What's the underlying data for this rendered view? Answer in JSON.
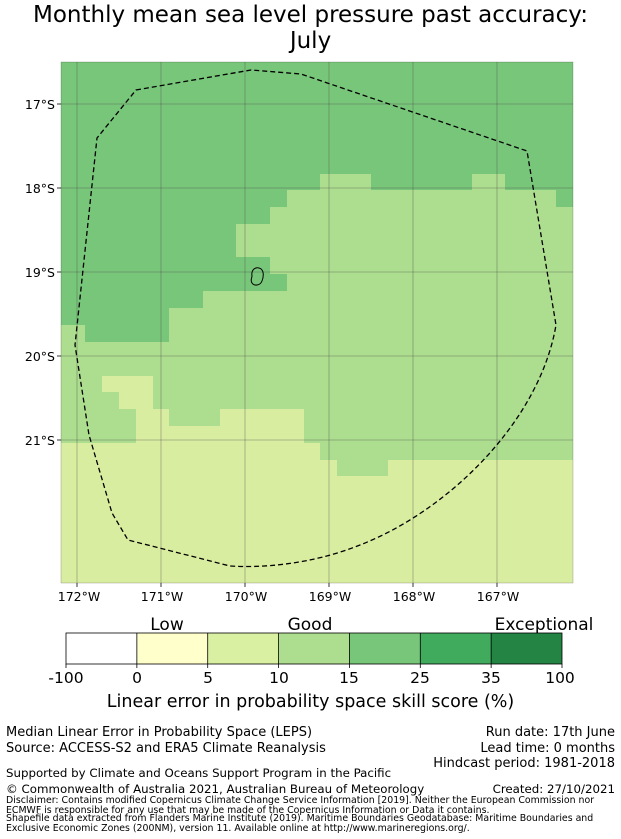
{
  "title": "Monthly mean sea level pressure past accuracy:",
  "subtitle": "July",
  "map": {
    "lat_labels": [
      "17°S",
      "18°S",
      "19°S",
      "20°S",
      "21°S"
    ],
    "lon_labels": [
      "172°W",
      "171°W",
      "170°W",
      "169°W",
      "168°W",
      "167°W"
    ],
    "colors": {
      "5-10": "#d9eda0",
      "10-15": "#addd8e",
      "15-25": "#78c679"
    }
  },
  "colorbar": {
    "categories": [
      "Low",
      "Good",
      "Exceptional"
    ],
    "ticks": [
      "-100",
      "0",
      "5",
      "10",
      "15",
      "25",
      "35",
      "100"
    ],
    "colors": [
      "#ffffff",
      "#ffffcc",
      "#d9f0a3",
      "#addd8e",
      "#78c679",
      "#41ab5d",
      "#238443"
    ],
    "label": "Linear error in probability space skill score (%)"
  },
  "footer": {
    "method": "Median Linear Error in Probability Space (LEPS)",
    "source": "Source: ACCESS-S2 and ERA5 Climate Reanalysis",
    "run_date": "Run date: 17th June",
    "lead_time": "Lead time: 0 months",
    "hindcast": "Hindcast period: 1981-2018",
    "support": "Supported by Climate and Oceans Support Program in the Pacific",
    "copyright": "© Commonwealth of Australia 2021, Australian Bureau of Meteorology",
    "created": "Created: 27/10/2021",
    "disclaimer_1": "Disclaimer: Contains modified Copernicus Climate Change Service Information [2019]. Neither the European Commission nor",
    "disclaimer_2": "ECMWF is responsible for any use that may be made of the Copernicus Information or Data it contains.",
    "shapefile_1": "Shapefile data extracted from Flanders Marine Institute (2019). Maritime Boundaries Geodatabase: Maritime Boundaries and",
    "shapefile_2": "Exclusive Economic Zones (200NM), version 11. Available online at http://www.marineregions.org/."
  }
}
